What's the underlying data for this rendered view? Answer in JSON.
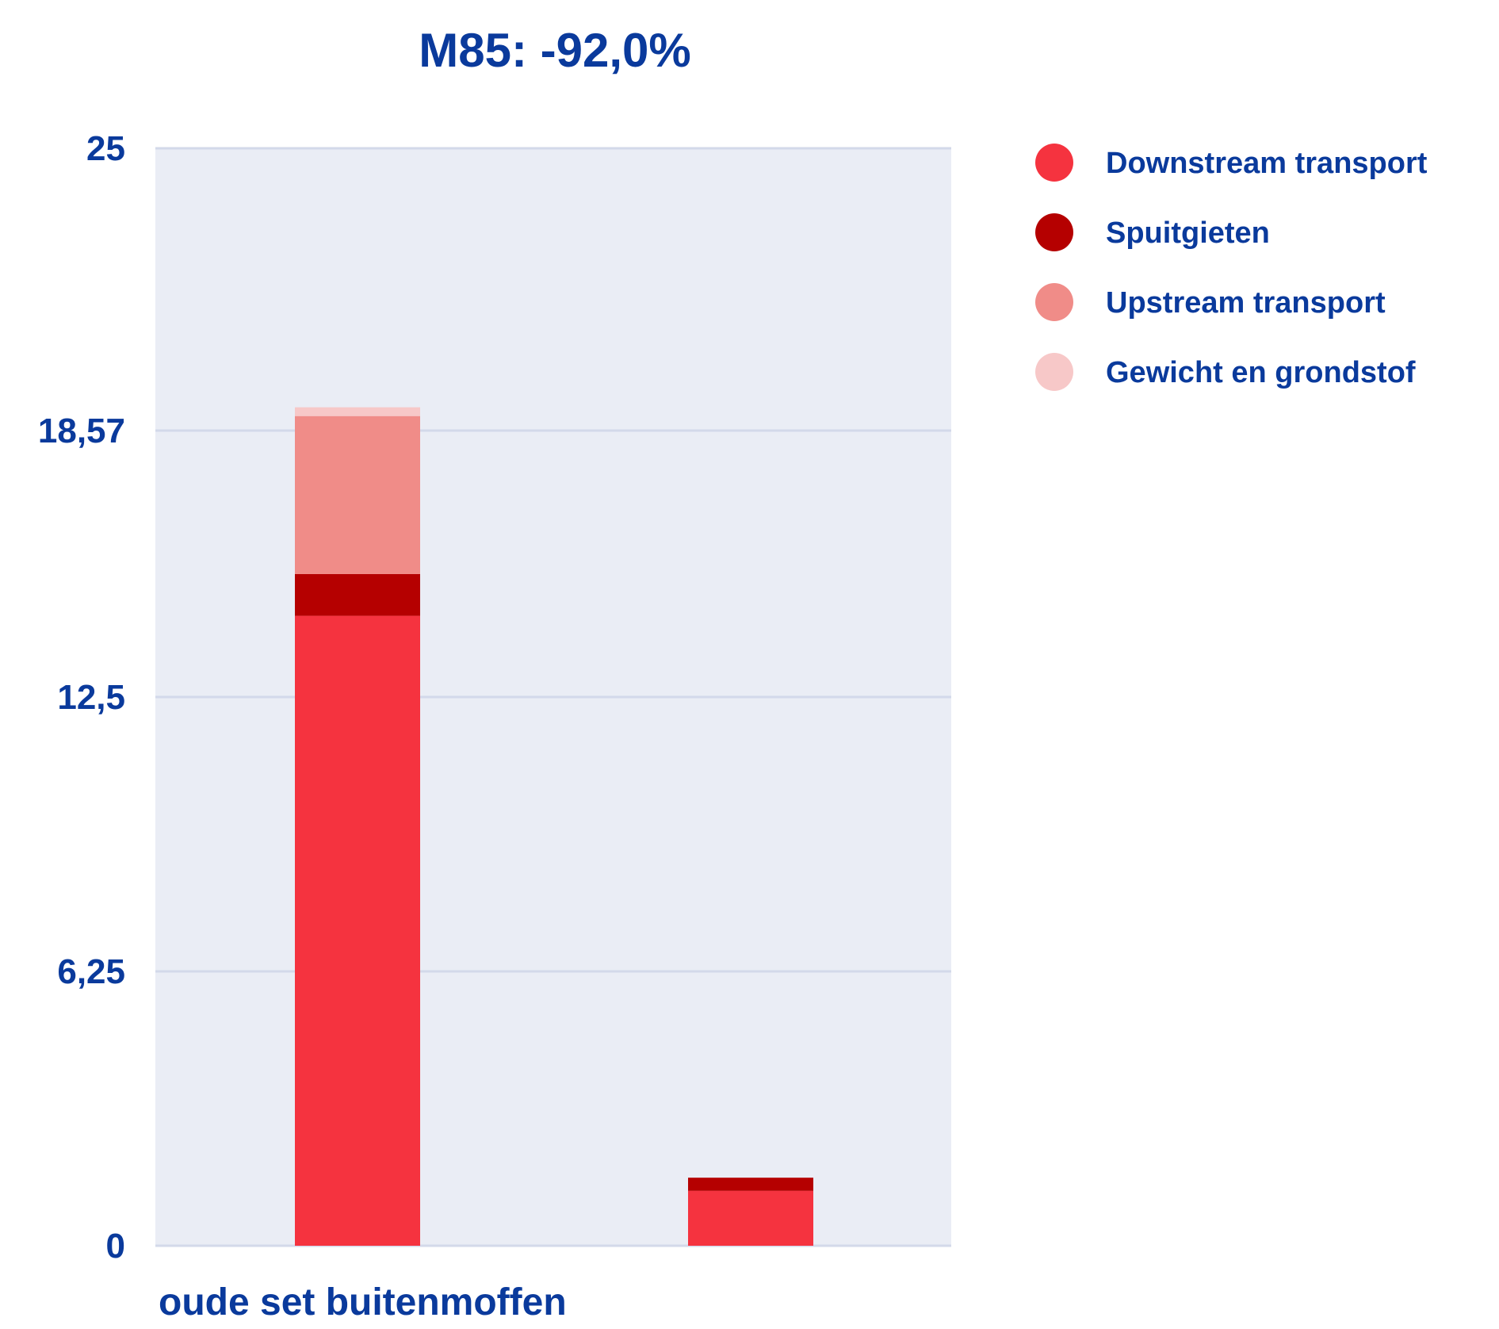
{
  "colors": {
    "text": "#0a3a9c",
    "plot_background": "#eaedf5",
    "gridline": "#d3d9ea"
  },
  "chart_data": {
    "type": "bar",
    "stacked": true,
    "title": "M85: -92,0%",
    "xlabel": "",
    "ylabel": "",
    "categories": [
      "oude set buitenmoffen",
      ""
    ],
    "series": [
      {
        "name": "Downstream transport",
        "color": "#f5333f",
        "values": [
          14.35,
          1.25
        ]
      },
      {
        "name": "Spuitgieten",
        "color": "#b50000",
        "values": [
          0.95,
          0.3
        ]
      },
      {
        "name": "Upstream transport",
        "color": "#f08c88",
        "values": [
          3.6,
          0
        ]
      },
      {
        "name": "Gewicht en grondstof",
        "color": "#f7c8c8",
        "values": [
          0.2,
          0
        ]
      }
    ],
    "ylim": [
      0,
      25
    ],
    "yticks": [
      0,
      6.25,
      12.5,
      18.57,
      25
    ],
    "ytick_labels": [
      "0",
      "6,25",
      "12,5",
      "18,57",
      "25"
    ],
    "grid": true,
    "legend_position": "right"
  }
}
